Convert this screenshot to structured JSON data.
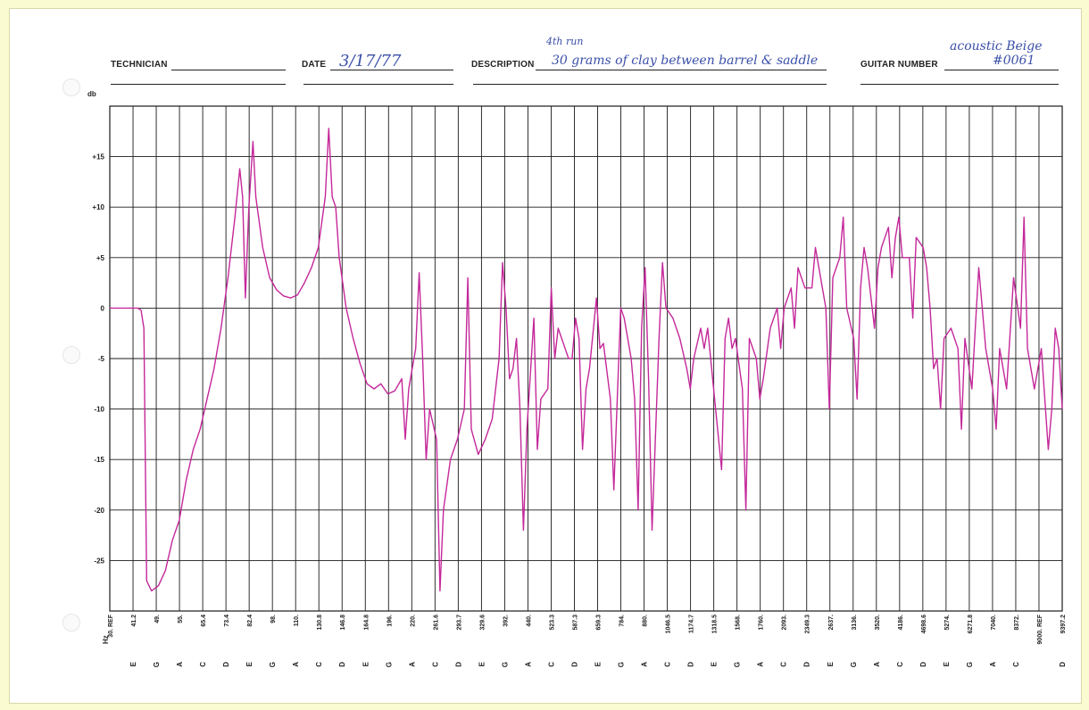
{
  "form": {
    "technician_label": "TECHNICIAN",
    "technician_value": "",
    "date_label": "DATE",
    "date_value": "3/17/77",
    "description_label": "DESCRIPTION",
    "description_value": "30 grams of clay between barrel & saddle",
    "description_note": "4th run",
    "guitar_number_label": "GUITAR NUMBER",
    "guitar_number_value_1": "acoustic Beige",
    "guitar_number_value_2": "#0061"
  },
  "colors": {
    "trace": "#c4289a",
    "grid": "#1a1a1a",
    "paper": "#ffffff",
    "border": "#fbfbd2",
    "ink": "#3a4fa8"
  },
  "chart_data": {
    "type": "line",
    "ylabel": "db",
    "xlabel": "Hz",
    "ylim": [
      -30,
      20
    ],
    "yticks": [
      {
        "v": 15,
        "label": "+15"
      },
      {
        "v": 10,
        "label": "+10"
      },
      {
        "v": 5,
        "label": "+5"
      },
      {
        "v": 0,
        "label": "0"
      },
      {
        "v": -5,
        "label": "-5"
      },
      {
        "v": -10,
        "label": "-10"
      },
      {
        "v": -15,
        "label": "-15"
      },
      {
        "v": -20,
        "label": "-20"
      },
      {
        "v": -25,
        "label": "-25"
      }
    ],
    "notes": [
      "",
      "E",
      "G",
      "A",
      "C",
      "D",
      "E",
      "G",
      "A",
      "C",
      "D",
      "E",
      "G",
      "A",
      "C",
      "D",
      "E",
      "G",
      "A",
      "C",
      "D",
      "E",
      "G",
      "A",
      "C",
      "D",
      "E",
      "G",
      "A",
      "C",
      "D",
      "E",
      "G",
      "A",
      "C",
      "D",
      "E",
      "G",
      "A",
      "C",
      "",
      "D"
    ],
    "freqs": [
      "30. REF",
      "41.2",
      "49.",
      "55.",
      "65.4",
      "73.4",
      "82.4",
      "98.",
      "110.",
      "130.8",
      "146.8",
      "164.8",
      "196.",
      "220.",
      "261.6",
      "293.7",
      "329.6",
      "392.",
      "440.",
      "523.3",
      "587.3",
      "659.3",
      "784.",
      "880.",
      "1046.5",
      "1174.7",
      "1318.5",
      "1568.",
      "1760.",
      "2093.",
      "2349.3",
      "2637.",
      "3136.",
      "3520.",
      "4186.",
      "4698.6",
      "5274.",
      "6271.8",
      "7040.",
      "8372.",
      "9000. REF",
      "9397.2"
    ],
    "series": [
      {
        "points": [
          [
            0,
            0
          ],
          [
            1,
            0
          ],
          [
            2,
            0
          ],
          [
            3,
            0
          ],
          [
            4,
            0
          ],
          [
            4.5,
            -0.2
          ],
          [
            4.9,
            -2
          ],
          [
            5.3,
            -27
          ],
          [
            6.0,
            -28
          ],
          [
            7,
            -27.5
          ],
          [
            8,
            -26
          ],
          [
            9,
            -23
          ],
          [
            10,
            -21
          ],
          [
            11,
            -17
          ],
          [
            12,
            -14
          ],
          [
            13,
            -12
          ],
          [
            14,
            -9
          ],
          [
            15,
            -6
          ],
          [
            16,
            -2
          ],
          [
            17,
            3
          ],
          [
            18,
            9
          ],
          [
            18.7,
            13.8
          ],
          [
            19.1,
            11
          ],
          [
            19.5,
            1
          ],
          [
            20,
            10
          ],
          [
            20.6,
            16.5
          ],
          [
            21.0,
            11
          ],
          [
            22,
            6
          ],
          [
            23,
            3
          ],
          [
            24,
            1.8
          ],
          [
            25,
            1.2
          ],
          [
            26,
            1
          ],
          [
            27,
            1.3
          ],
          [
            28,
            2.5
          ],
          [
            29,
            4
          ],
          [
            30,
            6
          ],
          [
            31,
            11
          ],
          [
            31.5,
            17.8
          ],
          [
            32,
            11
          ],
          [
            32.5,
            10
          ],
          [
            33,
            5
          ],
          [
            34,
            0
          ],
          [
            35,
            -3
          ],
          [
            36,
            -5.5
          ],
          [
            37,
            -7.5
          ],
          [
            38,
            -8
          ],
          [
            39,
            -7.5
          ],
          [
            40,
            -8.5
          ],
          [
            41,
            -8.2
          ],
          [
            42,
            -7
          ],
          [
            42.5,
            -13
          ],
          [
            43,
            -8
          ],
          [
            44,
            -4
          ],
          [
            44.5,
            3.5
          ],
          [
            45,
            -5
          ],
          [
            45.5,
            -15
          ],
          [
            46,
            -10
          ],
          [
            47,
            -13
          ],
          [
            47.5,
            -28
          ],
          [
            48,
            -20
          ],
          [
            49,
            -15
          ],
          [
            50,
            -13
          ],
          [
            51,
            -10
          ],
          [
            51.5,
            3
          ],
          [
            52,
            -12
          ],
          [
            53,
            -14.5
          ],
          [
            54,
            -13
          ],
          [
            55,
            -11
          ],
          [
            56,
            -5
          ],
          [
            56.5,
            4.5
          ],
          [
            57,
            0
          ],
          [
            57.5,
            -7
          ],
          [
            58,
            -6
          ],
          [
            58.5,
            -3
          ],
          [
            59,
            -10
          ],
          [
            59.5,
            -22
          ],
          [
            60,
            -12
          ],
          [
            61,
            -1
          ],
          [
            61.5,
            -14
          ],
          [
            62,
            -9
          ],
          [
            63,
            -8
          ],
          [
            63.5,
            2
          ],
          [
            64,
            -5
          ],
          [
            64.5,
            -2
          ],
          [
            65,
            -3
          ],
          [
            66,
            -5
          ],
          [
            66.5,
            -5
          ],
          [
            67,
            -1
          ],
          [
            67.5,
            -3
          ],
          [
            68,
            -14
          ],
          [
            68.5,
            -8
          ],
          [
            69,
            -6
          ],
          [
            70,
            1
          ],
          [
            70.5,
            -4
          ],
          [
            71,
            -3.5
          ],
          [
            72,
            -9
          ],
          [
            72.5,
            -18
          ],
          [
            73,
            -9
          ],
          [
            73.5,
            0
          ],
          [
            74,
            -1
          ],
          [
            75,
            -5
          ],
          [
            75.5,
            -9
          ],
          [
            76,
            -20
          ],
          [
            76.5,
            -2
          ],
          [
            77,
            4
          ],
          [
            77.5,
            -7
          ],
          [
            78,
            -22
          ],
          [
            79,
            -3
          ],
          [
            79.5,
            4.5
          ],
          [
            80,
            0
          ],
          [
            81,
            -1
          ],
          [
            81.5,
            -2
          ],
          [
            82,
            -3
          ],
          [
            83,
            -6
          ],
          [
            83.5,
            -8
          ],
          [
            84,
            -5
          ],
          [
            85,
            -2
          ],
          [
            85.5,
            -4
          ],
          [
            86,
            -2
          ],
          [
            87,
            -9
          ],
          [
            88,
            -16
          ],
          [
            88.5,
            -3
          ],
          [
            89,
            -1
          ],
          [
            89.5,
            -4
          ],
          [
            90,
            -3
          ],
          [
            91,
            -8
          ],
          [
            91.5,
            -20
          ],
          [
            92,
            -3
          ],
          [
            93,
            -5
          ],
          [
            93.5,
            -9
          ],
          [
            94,
            -7
          ],
          [
            95,
            -2
          ],
          [
            95.5,
            -1
          ],
          [
            96,
            0
          ],
          [
            96.5,
            -4
          ],
          [
            97,
            0
          ],
          [
            98,
            2
          ],
          [
            98.5,
            -2
          ],
          [
            99,
            4
          ],
          [
            100,
            2
          ],
          [
            101,
            2
          ],
          [
            101.5,
            6
          ],
          [
            102,
            4
          ],
          [
            103,
            0
          ],
          [
            103.5,
            -10
          ],
          [
            104,
            3
          ],
          [
            105,
            5
          ],
          [
            105.5,
            9
          ],
          [
            106,
            0
          ],
          [
            107,
            -3
          ],
          [
            107.5,
            -9
          ],
          [
            108,
            2
          ],
          [
            108.5,
            6
          ],
          [
            109,
            4
          ],
          [
            110,
            -2
          ],
          [
            110.5,
            4
          ],
          [
            111,
            6
          ],
          [
            112,
            8
          ],
          [
            112.5,
            3
          ],
          [
            113,
            7
          ],
          [
            113.5,
            9
          ],
          [
            114,
            5
          ],
          [
            115,
            5
          ],
          [
            115.5,
            -1
          ],
          [
            116,
            7
          ],
          [
            117,
            6
          ],
          [
            117.5,
            4
          ],
          [
            118,
            0
          ],
          [
            118.5,
            -6
          ],
          [
            119,
            -5
          ],
          [
            119.5,
            -10
          ],
          [
            120,
            -3
          ],
          [
            121,
            -2
          ],
          [
            122,
            -4
          ],
          [
            122.5,
            -12
          ],
          [
            123,
            -3
          ],
          [
            124,
            -8
          ],
          [
            124.5,
            -2
          ],
          [
            125,
            4
          ],
          [
            126,
            -4
          ],
          [
            127,
            -8
          ],
          [
            127.5,
            -12
          ],
          [
            128,
            -4
          ],
          [
            129,
            -8
          ],
          [
            130,
            3
          ],
          [
            131,
            -2
          ],
          [
            131.5,
            9
          ],
          [
            132,
            -4
          ],
          [
            133,
            -8
          ],
          [
            134,
            -4
          ],
          [
            135,
            -14
          ],
          [
            135.5,
            -10
          ],
          [
            136,
            -2
          ],
          [
            136.5,
            -4
          ],
          [
            137,
            -10
          ]
        ]
      }
    ]
  }
}
